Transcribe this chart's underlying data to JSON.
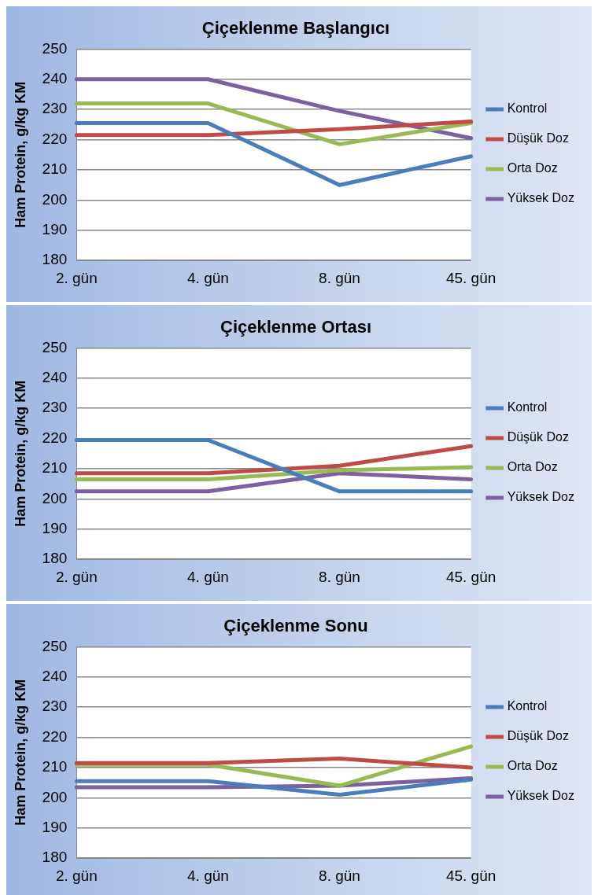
{
  "chart_data": [
    {
      "type": "line",
      "title": "Çiçeklenme Başlangıcı",
      "ylabel": "Ham Protein, g/kg KM",
      "categories": [
        "2. gün",
        "4. gün",
        "8. gün",
        "45. gün"
      ],
      "ylim": [
        180,
        250
      ],
      "yticks": [
        180,
        190,
        200,
        210,
        220,
        230,
        240,
        250
      ],
      "grid": "y",
      "legend": "right",
      "marker": "none",
      "series": [
        {
          "name": "Kontrol",
          "color": "#4a7ebb",
          "values": [
            225.5,
            225.5,
            205,
            214.5
          ]
        },
        {
          "name": "Düşük Doz",
          "color": "#be4b48",
          "values": [
            221.5,
            221.5,
            223.5,
            226
          ]
        },
        {
          "name": "Orta Doz",
          "color": "#98b954",
          "values": [
            232,
            232,
            218.5,
            225.5
          ]
        },
        {
          "name": "Yüksek Doz",
          "color": "#7d60a0",
          "values": [
            240,
            240,
            229.5,
            220.5
          ]
        }
      ]
    },
    {
      "type": "line",
      "title": "Çiçeklenme Ortası",
      "ylabel": "Ham Protein, g/kg KM",
      "categories": [
        "2. gün",
        "4. gün",
        "8. gün",
        "45. gün"
      ],
      "ylim": [
        180,
        250
      ],
      "yticks": [
        180,
        190,
        200,
        210,
        220,
        230,
        240,
        250
      ],
      "grid": "y",
      "legend": "right",
      "marker": "none",
      "series": [
        {
          "name": "Kontrol",
          "color": "#4a7ebb",
          "values": [
            219.5,
            219.5,
            202.5,
            202.5
          ]
        },
        {
          "name": "Düşük Doz",
          "color": "#be4b48",
          "values": [
            208.5,
            208.5,
            211,
            217.5
          ]
        },
        {
          "name": "Orta Doz",
          "color": "#98b954",
          "values": [
            206.5,
            206.5,
            209.5,
            210.5
          ]
        },
        {
          "name": "Yüksek Doz",
          "color": "#7d60a0",
          "values": [
            202.5,
            202.5,
            208.5,
            206.5
          ]
        }
      ]
    },
    {
      "type": "line",
      "title": "Çiçeklenme Sonu",
      "ylabel": "Ham Protein, g/kg KM",
      "categories": [
        "2. gün",
        "4. gün",
        "8. gün",
        "45. gün"
      ],
      "ylim": [
        180,
        250
      ],
      "yticks": [
        180,
        190,
        200,
        210,
        220,
        230,
        240,
        250
      ],
      "grid": "y",
      "legend": "right",
      "marker": "none",
      "series": [
        {
          "name": "Kontrol",
          "color": "#4a7ebb",
          "values": [
            205.5,
            205.5,
            201,
            206
          ]
        },
        {
          "name": "Düşük Doz",
          "color": "#be4b48",
          "values": [
            211.5,
            211.5,
            213,
            210
          ]
        },
        {
          "name": "Orta Doz",
          "color": "#98b954",
          "values": [
            211,
            211,
            204,
            217
          ]
        },
        {
          "name": "Yüksek Doz",
          "color": "#7d60a0",
          "values": [
            203.5,
            203.5,
            204,
            206.5
          ]
        }
      ]
    }
  ]
}
